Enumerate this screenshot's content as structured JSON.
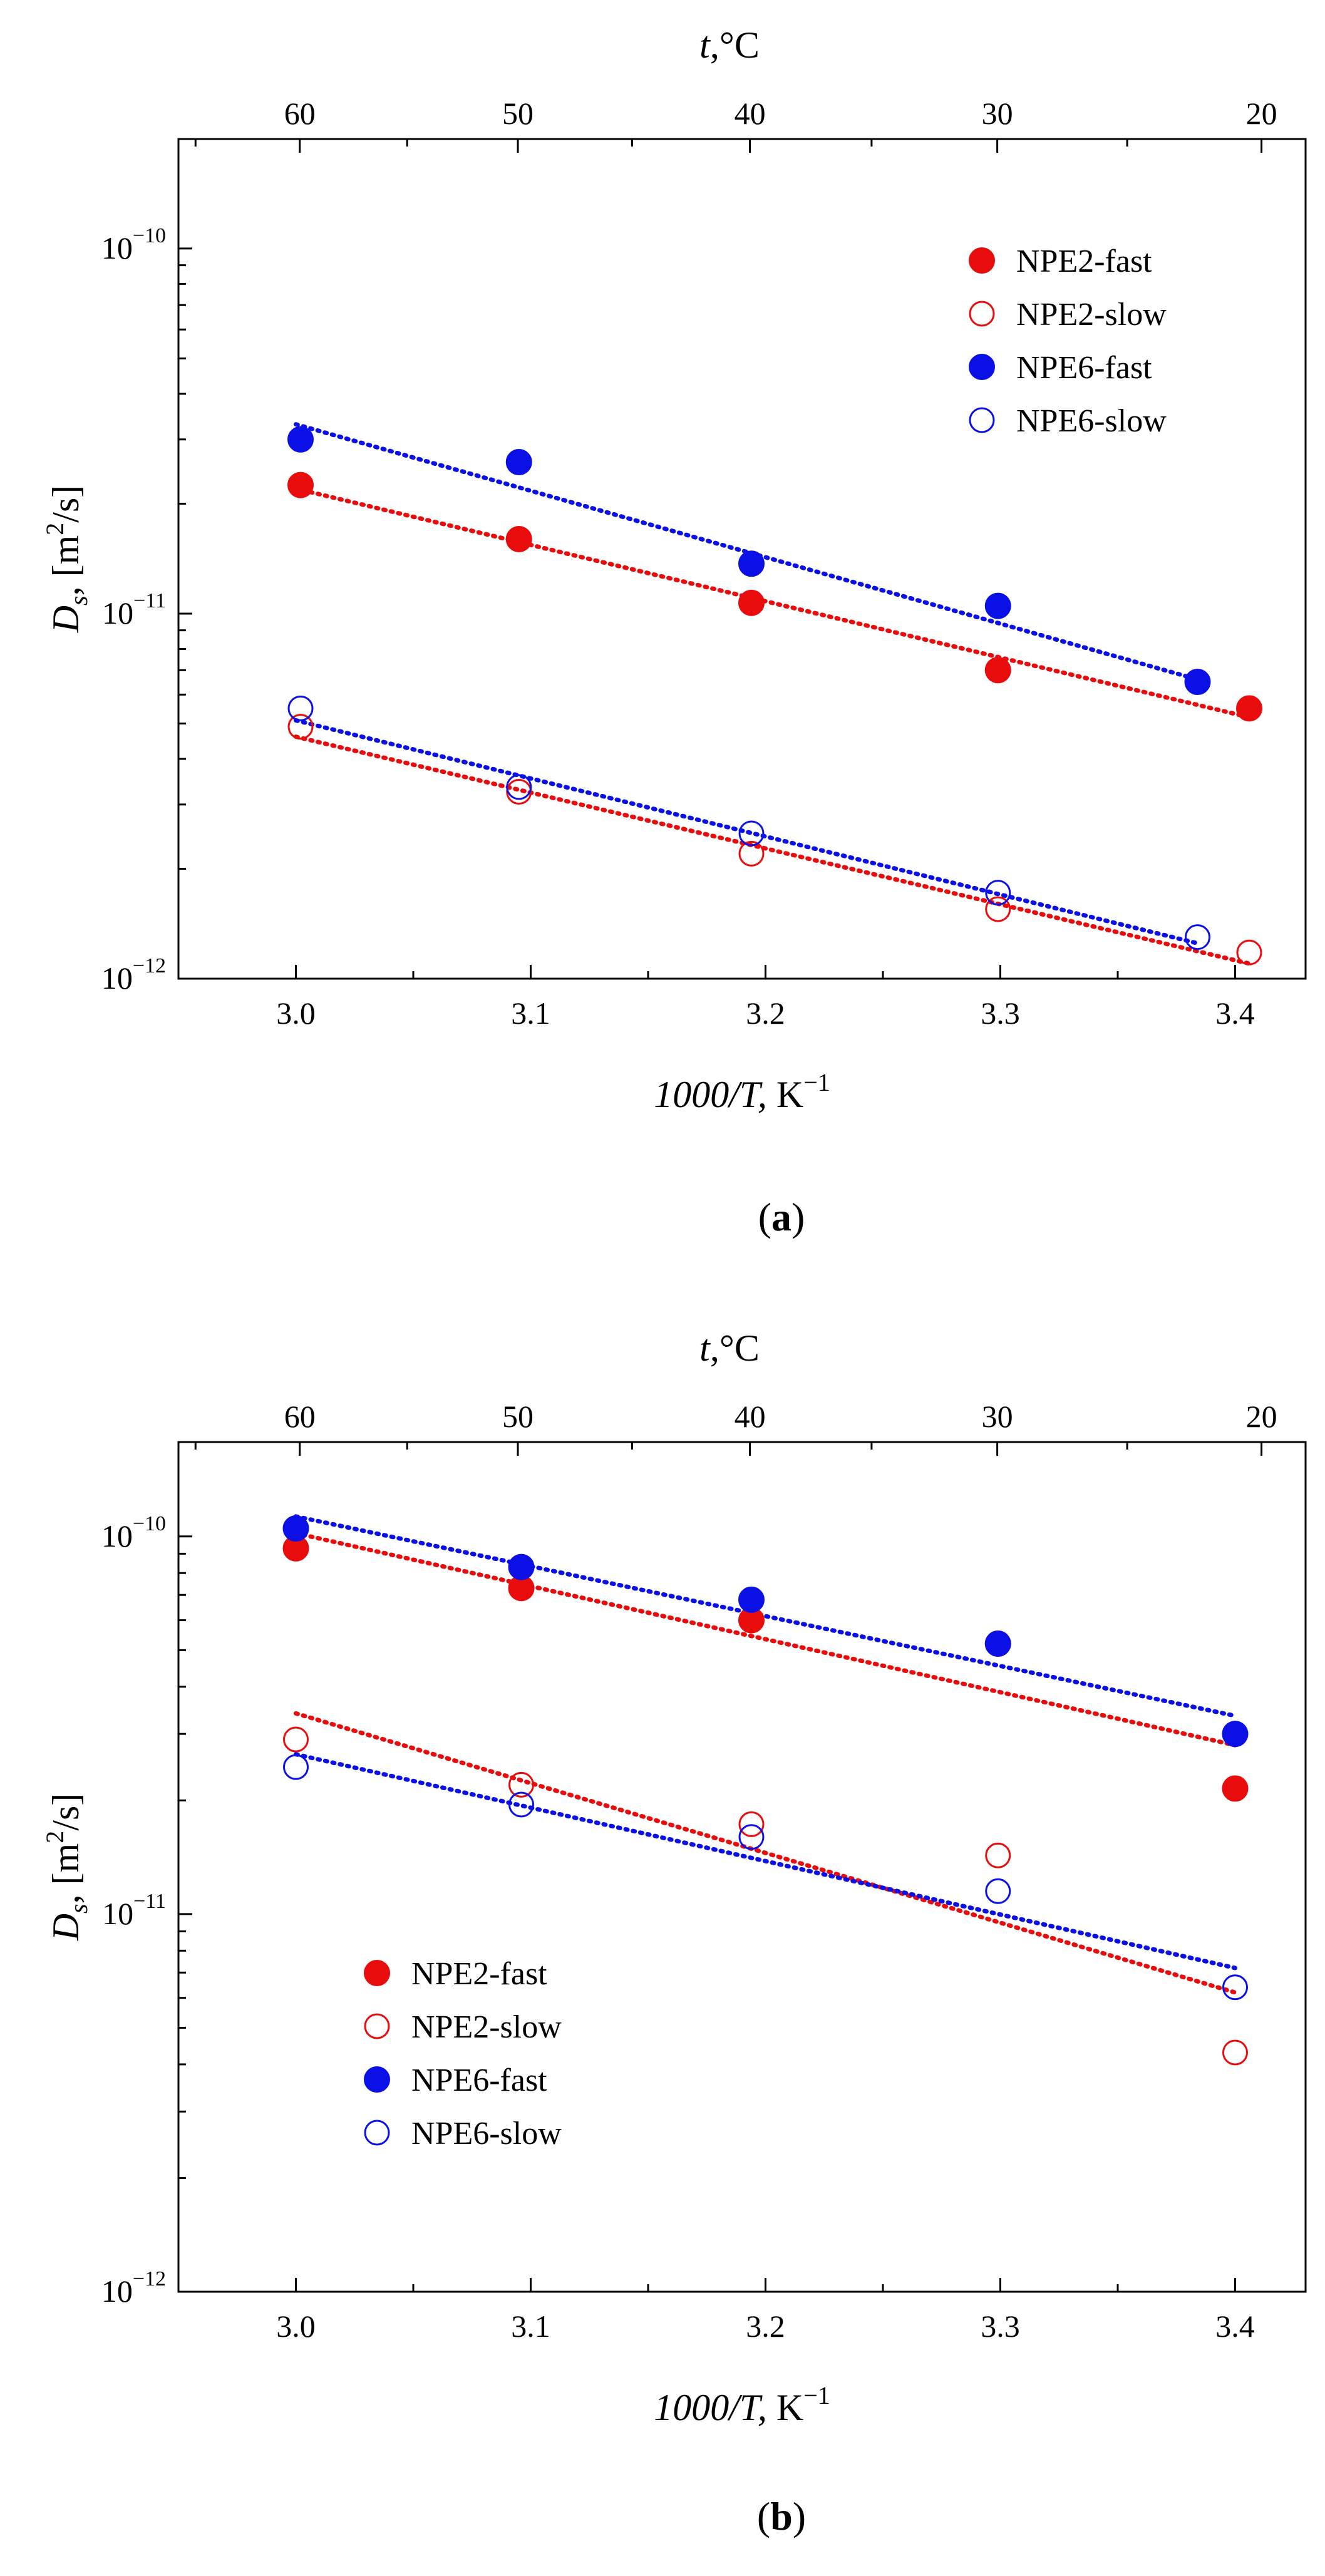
{
  "colors": {
    "red": "#e80c0c",
    "blue": "#0b10e6",
    "axis": "#000000"
  },
  "chart_data": [
    {
      "id": "a",
      "type": "scatter",
      "panel_label": "a",
      "x_axis": {
        "ticks": [
          3.0,
          3.1,
          3.2,
          3.3,
          3.4
        ],
        "tick_labels": [
          "3.0",
          "3.1",
          "3.2",
          "3.3",
          "3.4"
        ],
        "range": [
          2.95,
          3.43
        ],
        "title_italic": "1000/T,",
        "title_unit": "K",
        "title_sup": "−1"
      },
      "top_axis": {
        "ticks_celsius": [
          60,
          50,
          40,
          30,
          20
        ],
        "tick_labels": [
          "60",
          "50",
          "40",
          "30",
          "20"
        ],
        "title_italic": "t",
        "title_rest": ",°C"
      },
      "y_axis": {
        "scale": "log",
        "range_log10": [
          -12,
          -9.7
        ],
        "ticks_log10": [
          -12,
          -11,
          -10
        ],
        "tick_labels": [
          {
            "base": "10",
            "exp": "−12"
          },
          {
            "base": "10",
            "exp": "−11"
          },
          {
            "base": "10",
            "exp": "−10"
          }
        ],
        "title_italic": "D",
        "title_sub": "s",
        "title_rest": ", [m",
        "title_sup": "2",
        "title_tail": "/s]"
      },
      "legend": {
        "position": "top-right",
        "entries": [
          "NPE2-fast",
          "NPE2-slow",
          "NPE6-fast",
          "NPE6-slow"
        ]
      },
      "series": [
        {
          "name": "NPE2-fast",
          "color": "red",
          "filled": true,
          "x": [
            3.002,
            3.095,
            3.194,
            3.299,
            3.406
          ],
          "y": [
            2.25e-11,
            1.6e-11,
            1.07e-11,
            7e-12,
            5.5e-12
          ],
          "fit": {
            "x": [
              3.0,
              3.406
            ],
            "y": [
              2.2e-11,
              5.2e-12
            ]
          }
        },
        {
          "name": "NPE2-slow",
          "color": "red",
          "filled": false,
          "x": [
            3.002,
            3.095,
            3.194,
            3.299,
            3.406
          ],
          "y": [
            4.9e-12,
            3.25e-12,
            2.2e-12,
            1.55e-12,
            1.18e-12
          ],
          "fit": {
            "x": [
              3.0,
              3.406
            ],
            "y": [
              4.6e-12,
              1.1e-12
            ]
          }
        },
        {
          "name": "NPE6-fast",
          "color": "blue",
          "filled": true,
          "x": [
            3.002,
            3.095,
            3.194,
            3.299,
            3.384
          ],
          "y": [
            3e-11,
            2.6e-11,
            1.37e-11,
            1.05e-11,
            6.5e-12
          ],
          "fit": {
            "x": [
              3.0,
              3.384
            ],
            "y": [
              3.3e-11,
              6.6e-12
            ]
          }
        },
        {
          "name": "NPE6-slow",
          "color": "blue",
          "filled": false,
          "x": [
            3.002,
            3.095,
            3.194,
            3.299,
            3.384
          ],
          "y": [
            5.5e-12,
            3.35e-12,
            2.5e-12,
            1.72e-12,
            1.3e-12
          ],
          "fit": {
            "x": [
              3.0,
              3.384
            ],
            "y": [
              5.1e-12,
              1.25e-12
            ]
          }
        }
      ]
    },
    {
      "id": "b",
      "type": "scatter",
      "panel_label": "b",
      "x_axis": {
        "ticks": [
          3.0,
          3.1,
          3.2,
          3.3,
          3.4
        ],
        "tick_labels": [
          "3.0",
          "3.1",
          "3.2",
          "3.3",
          "3.4"
        ],
        "range": [
          2.95,
          3.43
        ],
        "title_italic": "1000/T,",
        "title_unit": "K",
        "title_sup": "−1"
      },
      "top_axis": {
        "ticks_celsius": [
          60,
          50,
          40,
          30,
          20
        ],
        "tick_labels": [
          "60",
          "50",
          "40",
          "30",
          "20"
        ],
        "title_italic": "t",
        "title_rest": ",°C"
      },
      "y_axis": {
        "scale": "log",
        "range_log10": [
          -12,
          -9.75
        ],
        "ticks_log10": [
          -12,
          -11,
          -10
        ],
        "tick_labels": [
          {
            "base": "10",
            "exp": "−12"
          },
          {
            "base": "10",
            "exp": "−11"
          },
          {
            "base": "10",
            "exp": "−10"
          }
        ],
        "title_italic": "D",
        "title_sub": "s",
        "title_rest": ", [m",
        "title_sup": "2",
        "title_tail": "/s]"
      },
      "legend": {
        "position": "bottom-left",
        "entries": [
          "NPE2-fast",
          "NPE2-slow",
          "NPE6-fast",
          "NPE6-slow"
        ]
      },
      "series": [
        {
          "name": "NPE2-fast",
          "color": "red",
          "filled": true,
          "x": [
            3.0,
            3.096,
            3.194,
            3.299,
            3.4
          ],
          "y": [
            9.3e-11,
            7.3e-11,
            6e-11,
            5.2e-11,
            2.15e-11
          ],
          "fit": {
            "x": [
              3.0,
              3.4
            ],
            "y": [
              1.02e-10,
              2.8e-11
            ]
          }
        },
        {
          "name": "NPE2-slow",
          "color": "red",
          "filled": false,
          "x": [
            3.0,
            3.096,
            3.194,
            3.299,
            3.4
          ],
          "y": [
            2.9e-11,
            2.2e-11,
            1.73e-11,
            1.43e-11,
            4.3e-12
          ],
          "fit": {
            "x": [
              3.0,
              3.4
            ],
            "y": [
              3.4e-11,
              6.2e-12
            ]
          }
        },
        {
          "name": "NPE6-fast",
          "color": "blue",
          "filled": true,
          "x": [
            3.0,
            3.096,
            3.194,
            3.299,
            3.4
          ],
          "y": [
            1.05e-10,
            8.3e-11,
            6.8e-11,
            5.2e-11,
            3e-11
          ],
          "fit": {
            "x": [
              3.0,
              3.4
            ],
            "y": [
              1.13e-10,
              3.35e-11
            ]
          }
        },
        {
          "name": "NPE6-slow",
          "color": "blue",
          "filled": false,
          "x": [
            3.0,
            3.096,
            3.194,
            3.299,
            3.4
          ],
          "y": [
            2.45e-11,
            1.95e-11,
            1.6e-11,
            1.15e-11,
            6.4e-12
          ],
          "fit": {
            "x": [
              3.0,
              3.4
            ],
            "y": [
              2.65e-11,
              7.2e-12
            ]
          }
        }
      ]
    }
  ]
}
